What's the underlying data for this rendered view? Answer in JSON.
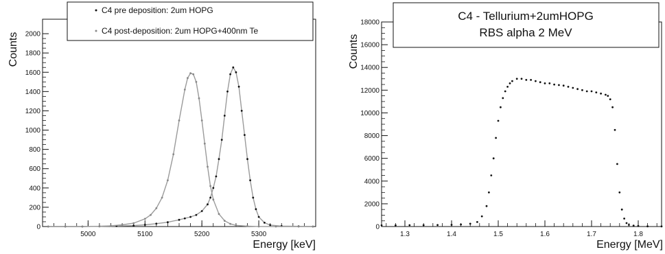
{
  "chart_data": [
    {
      "type": "scatter",
      "xlabel": "Energy [keV]",
      "ylabel": "Counts",
      "xlim": [
        4920,
        5400
      ],
      "ylim": [
        0,
        2150
      ],
      "xticks": [
        5000,
        5100,
        5200,
        5300
      ],
      "yticks": [
        0,
        200,
        400,
        600,
        800,
        1000,
        1200,
        1400,
        1600,
        1800,
        2000
      ],
      "legend_position": "top",
      "grid": false,
      "series": [
        {
          "name": "C4 pre deposition: 2um HOPG",
          "color": "#111111",
          "fit": true,
          "x": [
            4930,
            4960,
            4990,
            5020,
            5050,
            5080,
            5100,
            5120,
            5140,
            5160,
            5170,
            5180,
            5190,
            5200,
            5210,
            5215,
            5220,
            5225,
            5230,
            5235,
            5240,
            5245,
            5250,
            5255,
            5260,
            5265,
            5270,
            5275,
            5280,
            5285,
            5290,
            5295,
            5300,
            5310,
            5320,
            5340,
            5370,
            5395
          ],
          "y": [
            0,
            0,
            0,
            2,
            5,
            10,
            18,
            30,
            45,
            70,
            85,
            100,
            120,
            160,
            230,
            300,
            400,
            520,
            700,
            900,
            1150,
            1400,
            1580,
            1650,
            1600,
            1450,
            1200,
            950,
            700,
            480,
            300,
            180,
            100,
            40,
            15,
            5,
            2,
            0
          ]
        },
        {
          "name": "C4 post-deposition: 2um HOPG+400nm Te",
          "color": "#888888",
          "fit": true,
          "x": [
            4930,
            4960,
            4990,
            5020,
            5040,
            5060,
            5080,
            5100,
            5110,
            5120,
            5130,
            5140,
            5150,
            5160,
            5170,
            5175,
            5180,
            5185,
            5190,
            5195,
            5200,
            5205,
            5210,
            5215,
            5220,
            5230,
            5240,
            5250,
            5260,
            5280,
            5300,
            5330,
            5370,
            5395
          ],
          "y": [
            0,
            0,
            0,
            3,
            8,
            18,
            35,
            80,
            120,
            190,
            300,
            480,
            750,
            1100,
            1420,
            1540,
            1590,
            1580,
            1500,
            1330,
            1100,
            860,
            620,
            420,
            280,
            130,
            60,
            28,
            12,
            4,
            1,
            0,
            0,
            0
          ]
        }
      ]
    },
    {
      "type": "scatter",
      "title": "C4 - Tellurium+2umHOPG",
      "subtitle": "RBS alpha 2 MeV",
      "xlabel": "Energy [MeV]",
      "ylabel": "Counts",
      "xlim": [
        1.25,
        1.85
      ],
      "ylim": [
        0,
        18000
      ],
      "xticks": [
        1.3,
        1.4,
        1.5,
        1.6,
        1.7,
        1.8
      ],
      "yticks": [
        0,
        2000,
        4000,
        6000,
        8000,
        10000,
        12000,
        14000,
        16000,
        18000
      ],
      "legend_position": "top",
      "grid": false,
      "series": [
        {
          "color": "#111111",
          "x": [
            1.25,
            1.28,
            1.31,
            1.34,
            1.37,
            1.4,
            1.42,
            1.44,
            1.455,
            1.465,
            1.475,
            1.48,
            1.485,
            1.49,
            1.495,
            1.5,
            1.505,
            1.51,
            1.515,
            1.52,
            1.525,
            1.53,
            1.54,
            1.55,
            1.56,
            1.57,
            1.58,
            1.59,
            1.6,
            1.61,
            1.62,
            1.63,
            1.64,
            1.65,
            1.66,
            1.67,
            1.68,
            1.69,
            1.7,
            1.71,
            1.72,
            1.73,
            1.735,
            1.74,
            1.745,
            1.75,
            1.755,
            1.76,
            1.765,
            1.77,
            1.775,
            1.78,
            1.79,
            1.8,
            1.82,
            1.85
          ],
          "y": [
            100,
            100,
            120,
            120,
            130,
            150,
            180,
            250,
            400,
            900,
            1800,
            3000,
            4500,
            6000,
            7800,
            9300,
            10500,
            11300,
            11900,
            12300,
            12600,
            12800,
            13000,
            13000,
            12900,
            12900,
            12800,
            12700,
            12600,
            12600,
            12500,
            12450,
            12400,
            12300,
            12200,
            12100,
            12000,
            11900,
            11900,
            11800,
            11700,
            11600,
            11500,
            11200,
            10500,
            8500,
            5500,
            3000,
            1500,
            700,
            300,
            150,
            80,
            50,
            20,
            10
          ]
        }
      ]
    }
  ]
}
